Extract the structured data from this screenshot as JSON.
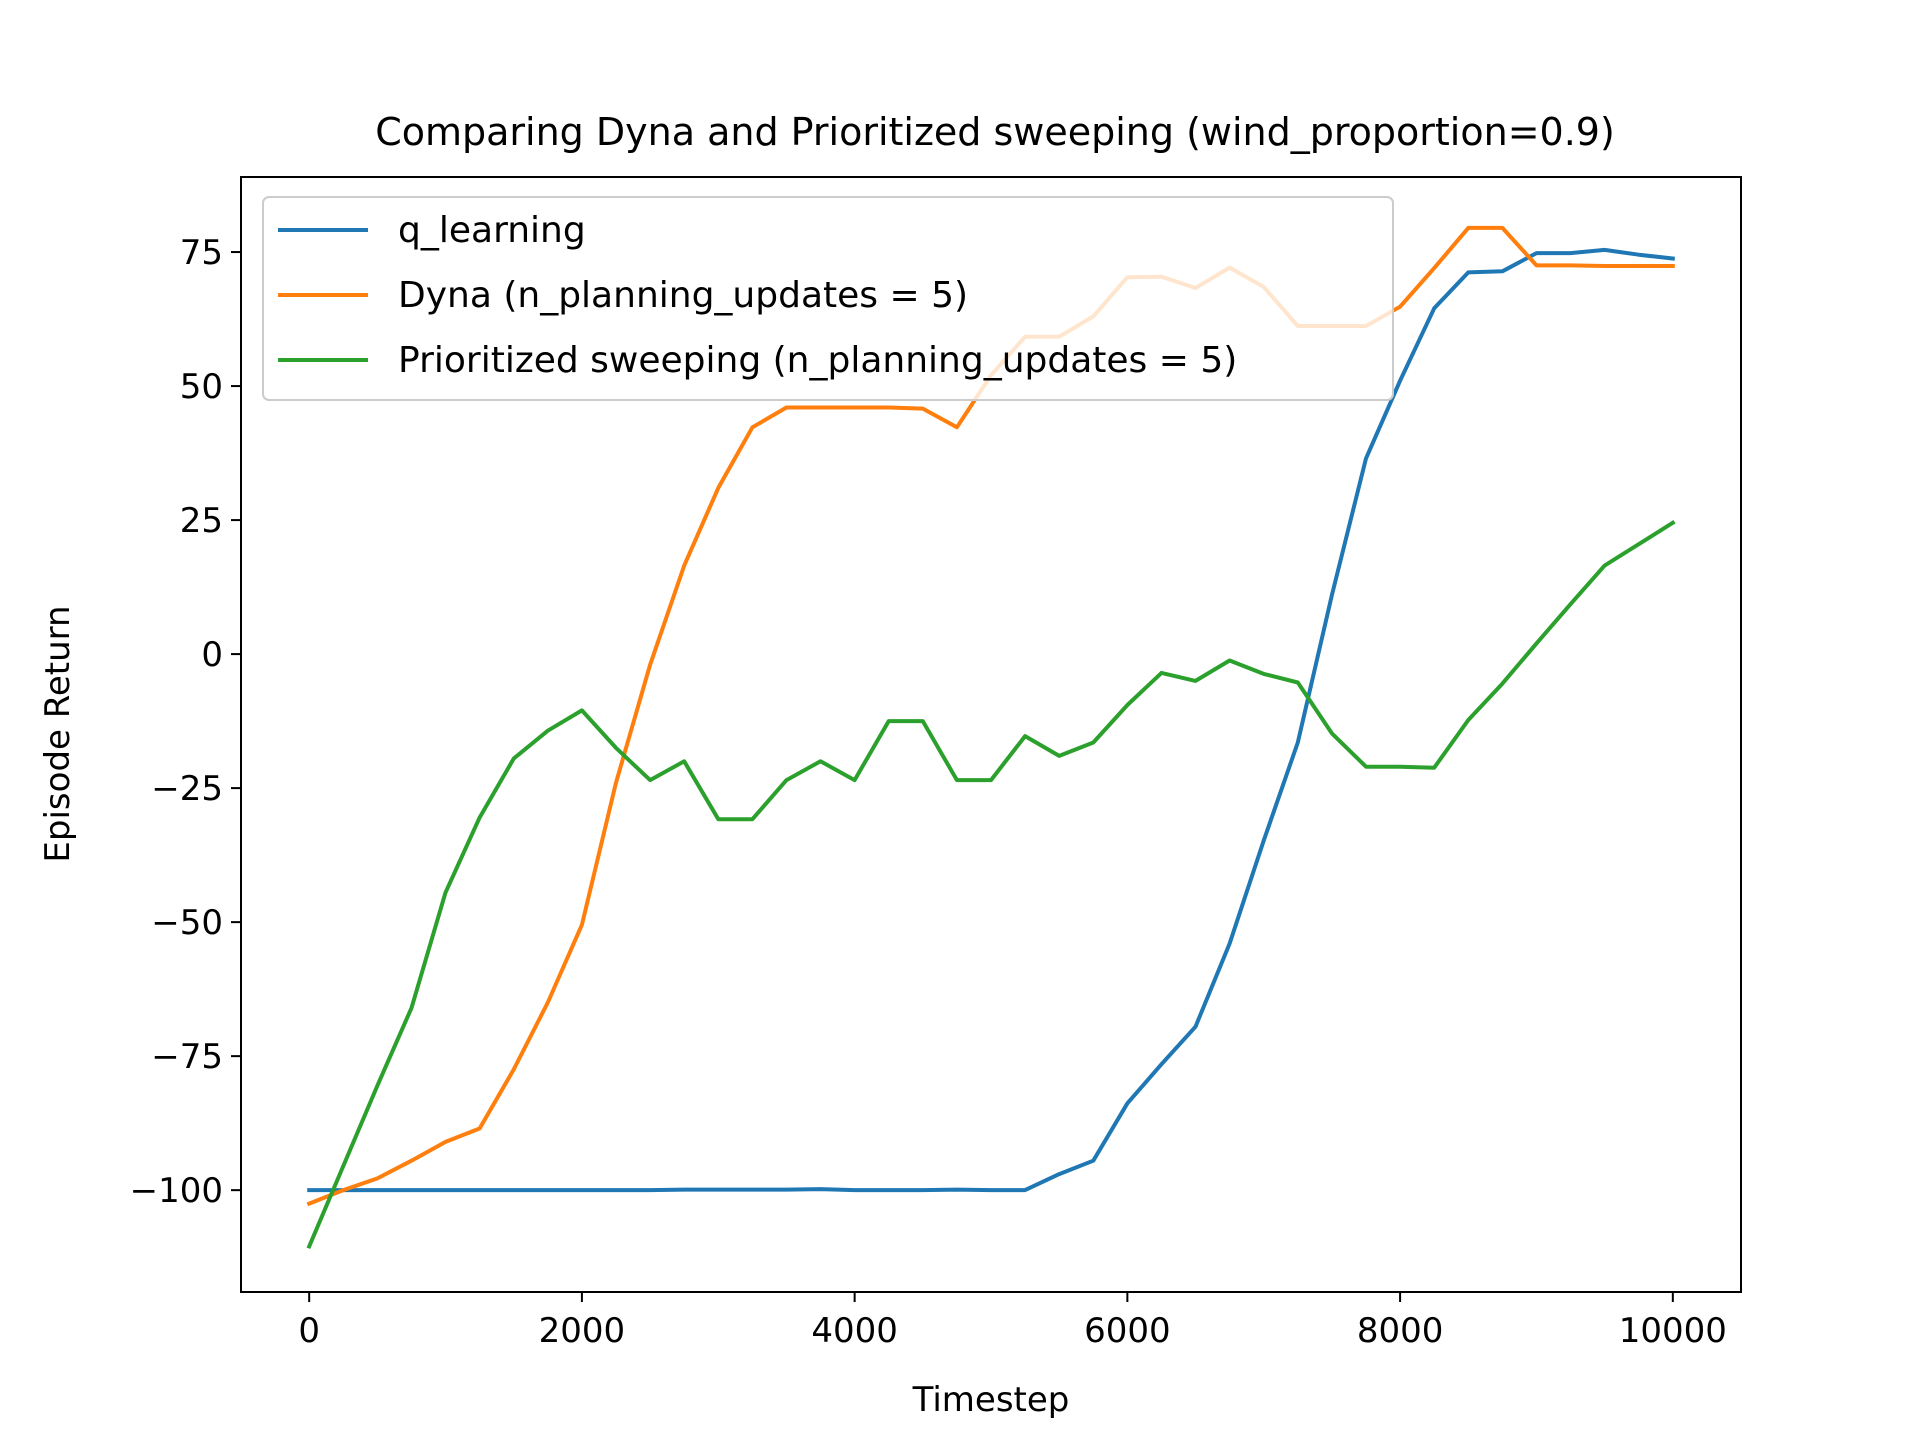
{
  "chart_data": {
    "type": "line",
    "title": "Comparing Dyna and Prioritized sweeping (wind_proportion=0.9)",
    "xlabel": "Timestep",
    "ylabel": "Episode Return",
    "xlim": [
      -500,
      10500
    ],
    "ylim": [
      -119,
      89
    ],
    "x_ticks": [
      0,
      2000,
      4000,
      6000,
      8000,
      10000
    ],
    "x_tick_labels": [
      "0",
      "2000",
      "4000",
      "6000",
      "8000",
      "10000"
    ],
    "y_ticks": [
      -100,
      -75,
      -50,
      -25,
      0,
      25,
      50,
      75
    ],
    "y_tick_labels": [
      "−100",
      "−75",
      "−50",
      "−25",
      "0",
      "25",
      "50",
      "75"
    ],
    "grid": false,
    "legend_position": "upper-left",
    "x": [
      0,
      250,
      500,
      750,
      1000,
      1250,
      1500,
      1750,
      2000,
      2250,
      2500,
      2750,
      3000,
      3250,
      3500,
      3750,
      4000,
      4250,
      4500,
      4750,
      5000,
      5250,
      5500,
      5750,
      6000,
      6250,
      6500,
      6750,
      7000,
      7250,
      7500,
      7750,
      8000,
      8250,
      8500,
      8750,
      9000,
      9250,
      9500,
      9750,
      10000
    ],
    "series": [
      {
        "name": "q_learning",
        "color": "#1f77b4",
        "values": [
          -100,
          -100,
          -100,
          -100,
          -100,
          -100,
          -100,
          -100,
          -100,
          -100,
          -100,
          -99.9,
          -99.9,
          -99.9,
          -99.9,
          -99.8,
          -100,
          -100,
          -100,
          -99.9,
          -100,
          -100,
          -97,
          -94.5,
          -83.8,
          -76.5,
          -69.5,
          -54,
          -34.8,
          -16.5,
          11,
          36.5,
          51,
          64.5,
          71.2,
          71.4,
          74.8,
          74.8,
          75.4,
          74.5,
          73.8
        ]
      },
      {
        "name": "Dyna (n_planning_updates = 5)",
        "color": "#ff7f0e",
        "values": [
          -102.5,
          -100,
          -97.8,
          -94.5,
          -91,
          -88.5,
          -77.5,
          -65,
          -50.5,
          -24,
          -2,
          16.5,
          31,
          42.3,
          46,
          46,
          46,
          46,
          45.8,
          42.3,
          52,
          59.2,
          59.2,
          63,
          70.3,
          70.4,
          68.3,
          72.1,
          68.5,
          61.2,
          61.2,
          61.2,
          64.8,
          72,
          79.5,
          79.5,
          72.5,
          72.5,
          72.4,
          72.4,
          72.4
        ]
      },
      {
        "name": "Prioritized sweeping (n_planning_updates = 5)",
        "color": "#2ca02c",
        "values": [
          -110.5,
          -95.5,
          -80.5,
          -66,
          -44.5,
          -30.5,
          -19.5,
          -14.3,
          -10.5,
          -17.5,
          -23.5,
          -20,
          -30.8,
          -30.8,
          -23.5,
          -20,
          -23.5,
          -12.5,
          -12.5,
          -23.5,
          -23.5,
          -15.3,
          -19,
          -16.5,
          -9.5,
          -3.5,
          -5,
          -1.2,
          -3.7,
          -5.3,
          -14.8,
          -21,
          -21,
          -21.2,
          -12.3,
          -5.5,
          2,
          9.3,
          16.5,
          20.5,
          24.5
        ]
      }
    ]
  }
}
